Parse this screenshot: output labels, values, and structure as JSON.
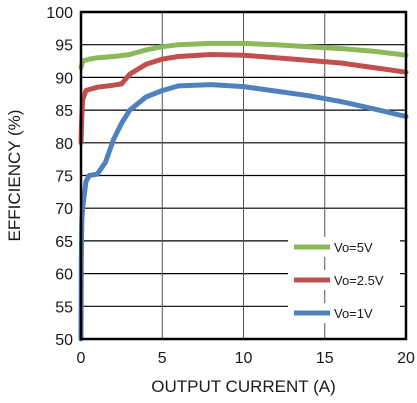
{
  "chart_data": {
    "type": "line",
    "title": "",
    "xlabel": "OUTPUT CURRENT (A)",
    "ylabel": "EFFICIENCY (%)",
    "xlim": [
      0,
      20
    ],
    "ylim": [
      50,
      100
    ],
    "x_ticks": [
      "0",
      "5",
      "10",
      "15",
      "20"
    ],
    "y_ticks": [
      "50",
      "55",
      "60",
      "65",
      "70",
      "75",
      "80",
      "85",
      "90",
      "95",
      "100"
    ],
    "grid": true,
    "legend_position": "bottom-right",
    "series": [
      {
        "name": "Vo=5V",
        "color": "#8cb85a",
        "points": [
          [
            0,
            91.5
          ],
          [
            0.1,
            92.5
          ],
          [
            0.5,
            92.8
          ],
          [
            1,
            93.0
          ],
          [
            2,
            93.2
          ],
          [
            3,
            93.5
          ],
          [
            4,
            94.2
          ],
          [
            5,
            94.7
          ],
          [
            6,
            95.0
          ],
          [
            8,
            95.2
          ],
          [
            10,
            95.2
          ],
          [
            12,
            95.0
          ],
          [
            14,
            94.7
          ],
          [
            16,
            94.4
          ],
          [
            18,
            94.0
          ],
          [
            20,
            93.4
          ]
        ]
      },
      {
        "name": "Vo=2.5V",
        "color": "#c0504d",
        "points": [
          [
            0,
            80
          ],
          [
            0.05,
            84
          ],
          [
            0.1,
            86.5
          ],
          [
            0.3,
            88.0
          ],
          [
            1,
            88.5
          ],
          [
            2,
            88.8
          ],
          [
            2.5,
            89.0
          ],
          [
            3,
            90.5
          ],
          [
            4,
            92.0
          ],
          [
            5,
            92.8
          ],
          [
            6,
            93.2
          ],
          [
            8,
            93.5
          ],
          [
            10,
            93.4
          ],
          [
            12,
            93.0
          ],
          [
            14,
            92.6
          ],
          [
            16,
            92.2
          ],
          [
            18,
            91.5
          ],
          [
            20,
            90.8
          ]
        ]
      },
      {
        "name": "Vo=1V",
        "color": "#4f81bd",
        "points": [
          [
            0,
            50
          ],
          [
            0.02,
            62
          ],
          [
            0.05,
            68
          ],
          [
            0.1,
            70
          ],
          [
            0.3,
            74
          ],
          [
            0.5,
            75.0
          ],
          [
            1,
            75.2
          ],
          [
            1.5,
            77
          ],
          [
            2,
            80.5
          ],
          [
            2.5,
            83
          ],
          [
            3,
            85
          ],
          [
            4,
            87
          ],
          [
            5,
            88
          ],
          [
            6,
            88.7
          ],
          [
            8,
            88.9
          ],
          [
            10,
            88.6
          ],
          [
            12,
            87.9
          ],
          [
            14,
            87.2
          ],
          [
            16,
            86.3
          ],
          [
            18,
            85.2
          ],
          [
            20,
            84.0
          ]
        ]
      }
    ]
  }
}
